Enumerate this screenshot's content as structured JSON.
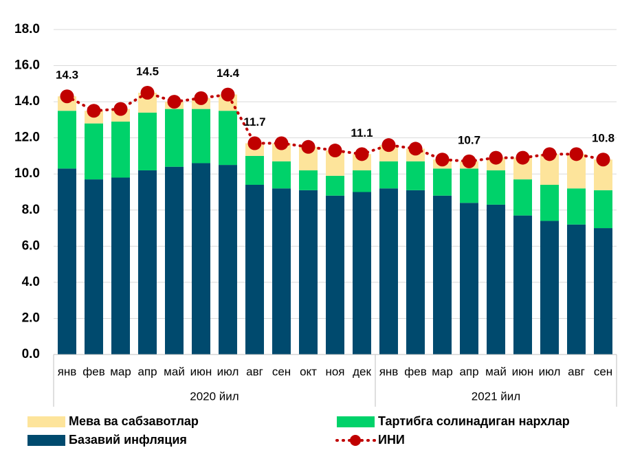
{
  "chart_data": {
    "type": "stacked_bar_line",
    "categories": [
      "янв",
      "фев",
      "мар",
      "апр",
      "май",
      "июн",
      "июл",
      "авг",
      "сен",
      "окт",
      "ноя",
      "дек",
      "янв",
      "фев",
      "мар",
      "апр",
      "май",
      "июн",
      "июл",
      "авг",
      "сен"
    ],
    "groups": [
      {
        "label": "2020 йил",
        "count": 12
      },
      {
        "label": "2021 йил",
        "count": 9
      }
    ],
    "series": [
      {
        "name": "Базавий инфляция",
        "color": "#004a6e",
        "values": [
          10.3,
          9.7,
          9.8,
          10.2,
          10.4,
          10.6,
          10.5,
          9.4,
          9.2,
          9.1,
          8.8,
          9.0,
          9.2,
          9.1,
          8.8,
          8.4,
          8.3,
          7.7,
          7.4,
          7.2,
          7.0
        ]
      },
      {
        "name": "Тартибга солинадиган нархлар",
        "color": "#00d26a",
        "values": [
          3.2,
          3.1,
          3.1,
          3.2,
          3.2,
          3.0,
          3.0,
          1.6,
          1.5,
          1.1,
          1.1,
          1.2,
          1.5,
          1.6,
          1.5,
          1.9,
          1.9,
          2.0,
          2.0,
          2.0,
          2.1
        ]
      },
      {
        "name": "Мева ва сабзавотлар",
        "color": "#fde49b",
        "values": [
          0.8,
          0.7,
          0.7,
          1.1,
          0.4,
          0.6,
          0.9,
          0.7,
          1.0,
          1.3,
          1.4,
          0.9,
          0.9,
          0.7,
          0.5,
          0.4,
          0.7,
          1.2,
          1.7,
          1.9,
          1.7
        ]
      },
      {
        "name": "ИНИ",
        "type": "line",
        "color": "#c00000",
        "values": [
          14.3,
          13.5,
          13.6,
          14.5,
          14.0,
          14.2,
          14.4,
          11.7,
          11.7,
          11.5,
          11.3,
          11.1,
          11.6,
          11.4,
          10.8,
          10.7,
          10.9,
          10.9,
          11.1,
          11.1,
          10.8
        ],
        "value_labels": [
          "14.3",
          null,
          null,
          "14.5",
          null,
          null,
          "14.4",
          "11.7",
          null,
          null,
          null,
          "11.1",
          null,
          null,
          null,
          "10.7",
          null,
          null,
          null,
          null,
          "10.8"
        ]
      }
    ],
    "ylim": [
      0,
      18
    ],
    "yticks": [
      {
        "value": 0,
        "label": "0.0"
      },
      {
        "value": 2,
        "label": "2.0"
      },
      {
        "value": 4,
        "label": "4.0"
      },
      {
        "value": 6,
        "label": "6.0"
      },
      {
        "value": 8,
        "label": "8.0"
      },
      {
        "value": 10,
        "label": "10.0"
      },
      {
        "value": 12,
        "label": "12.0"
      },
      {
        "value": 14,
        "label": "14.0"
      },
      {
        "value": 16,
        "label": "16.0"
      },
      {
        "value": 18,
        "label": "18.0"
      }
    ],
    "grid": true
  }
}
